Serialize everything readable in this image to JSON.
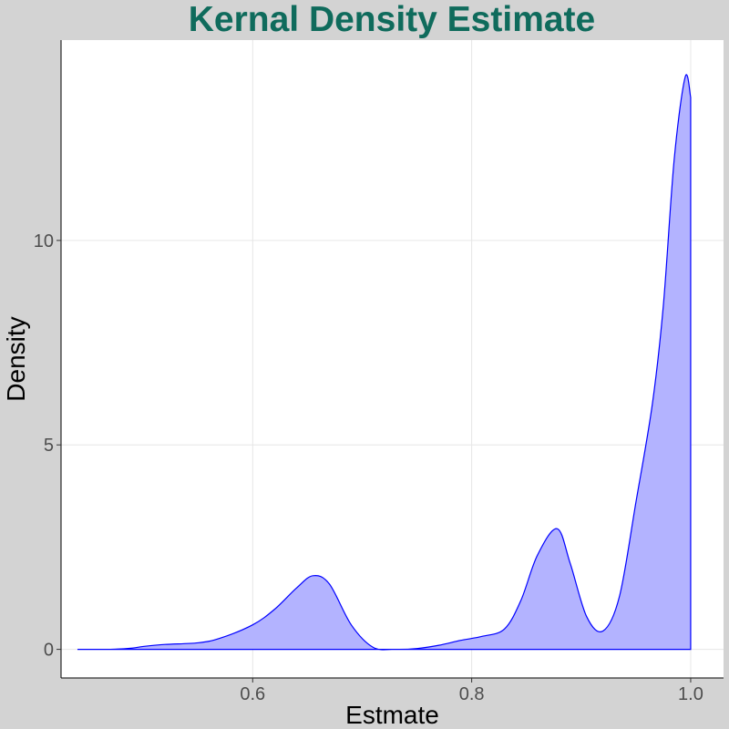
{
  "chart_data": {
    "type": "area",
    "title": "Kernal Density Estimate",
    "xlabel": "Estmate",
    "ylabel": "Density",
    "xlim": [
      0.425,
      1.03
    ],
    "ylim": [
      -0.7,
      14.9
    ],
    "xticks": [
      0.6,
      0.8,
      1.0
    ],
    "xtick_labels": [
      "0.6",
      "0.8",
      "1.0"
    ],
    "yticks": [
      0,
      5,
      10
    ],
    "ytick_labels": [
      "0",
      "5",
      "10"
    ],
    "grid": true,
    "fill_color": "#b3b3ff",
    "line_color": "#0000ff",
    "series": [
      {
        "x": [
          0.44,
          0.47,
          0.49,
          0.5,
          0.52,
          0.55,
          0.57,
          0.6,
          0.62,
          0.64,
          0.655,
          0.67,
          0.69,
          0.71,
          0.73,
          0.75,
          0.77,
          0.79,
          0.81,
          0.83,
          0.845,
          0.86,
          0.878,
          0.89,
          0.905,
          0.92,
          0.935,
          0.95,
          0.965,
          0.975,
          0.985,
          0.995,
          1.0
        ],
        "y": [
          0.0,
          0.0,
          0.03,
          0.07,
          0.12,
          0.16,
          0.27,
          0.6,
          0.98,
          1.5,
          1.8,
          1.6,
          0.6,
          0.05,
          0.0,
          0.02,
          0.1,
          0.22,
          0.32,
          0.5,
          1.2,
          2.3,
          2.95,
          2.1,
          0.8,
          0.45,
          1.3,
          3.6,
          6.0,
          8.4,
          12.0,
          14.0,
          13.5
        ]
      }
    ]
  }
}
